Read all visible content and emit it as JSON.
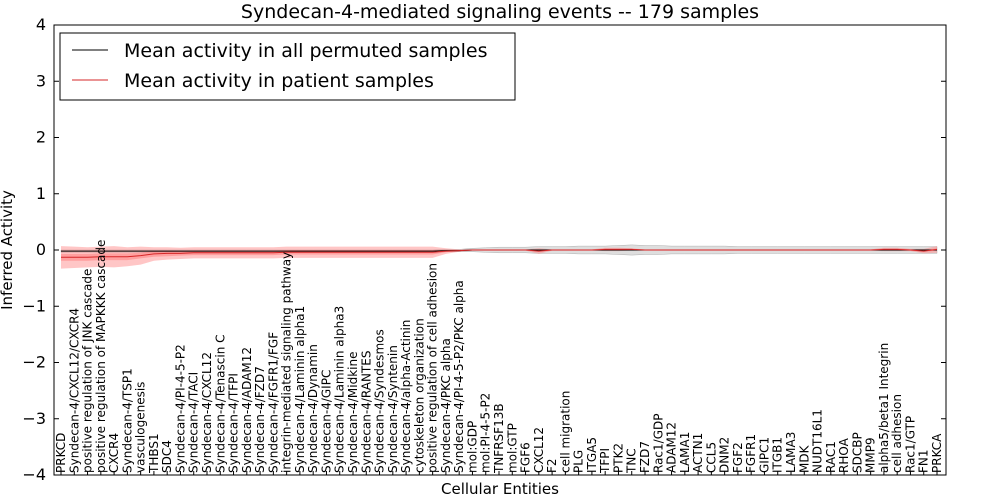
{
  "chart_data": {
    "type": "line",
    "title": "Syndecan-4-mediated signaling events -- 179 samples",
    "xlabel": "Cellular Entities",
    "ylabel": "Inferred Activity",
    "ylim": [
      -4,
      4
    ],
    "yticks": [
      4,
      3,
      2,
      1,
      0,
      -1,
      -2,
      -3,
      -4
    ],
    "ytick_labels": [
      "4",
      "3",
      "2",
      "1",
      "0",
      "−1",
      "−2",
      "−3",
      "−4"
    ],
    "legend": [
      "Mean activity in all permuted samples",
      "Mean activity in patient samples"
    ],
    "colors": {
      "permuted": "#000000",
      "patient": "#d62728",
      "patient_band": "#ff8080",
      "permuted_band": "#c8c8c8"
    },
    "categories": [
      "PRKCD",
      "Syndecan-4/CXCL12/CXCR4",
      "positive regulation of JNK cascade",
      "positive regulation of MAPKKK cascade",
      "CXCR4",
      "Syndecan-4/TSP1",
      "vasculogenesis",
      "THBS1",
      "SDC4",
      "Syndecan-4/PI-4-5-P2",
      "Syndecan-4/TACI",
      "Syndecan-4/CXCL12",
      "Syndecan-4/Tenascin C",
      "Syndecan-4/TFPI",
      "Syndecan-4/ADAM12",
      "Syndecan-4/FZD7",
      "Syndecan-4/FGFR1/FGF",
      "integrin-mediated signaling pathway",
      "Syndecan-4/Laminin alpha1",
      "Syndecan-4/Dynamin",
      "Syndecan-4/GIPC",
      "Syndecan-4/Laminin alpha3",
      "Syndecan-4/Midkine",
      "Syndecan-4/RANTES",
      "Syndecan-4/Syndesmos",
      "Syndecan-4/Syntenin",
      "Syndecan-4/alpha-Actinin",
      "cytoskeleton organization",
      "positive regulation of cell adhesion",
      "Syndecan-4/PKC alpha",
      "Syndecan-4/PI-4-5-P2/PKC alpha",
      "mol:GDP",
      "mol:PI-4-5-P2",
      "TNFRSF13B",
      "mol:GTP",
      "FGF6",
      "CXCL12",
      "F2",
      "cell migration",
      "PLG",
      "ITGA5",
      "TFPI",
      "PTK2",
      "TNC",
      "FZD7",
      "Rac1/GDP",
      "ADAM12",
      "LAMA1",
      "ACTN1",
      "CCL5",
      "DNM2",
      "FGF2",
      "FGFR1",
      "GIPC1",
      "ITGB1",
      "LAMA3",
      "MDK",
      "NUDT16L1",
      "RAC1",
      "RHOA",
      "SDCBP",
      "MMP9",
      "alpha5/beta1 Integrin",
      "cell adhesion",
      "Rac1/GTP",
      "FN1",
      "PRKCA"
    ],
    "series": [
      {
        "name": "Mean activity in all permuted samples",
        "values": [
          -0.02,
          -0.02,
          -0.02,
          -0.02,
          -0.02,
          -0.02,
          -0.02,
          -0.02,
          -0.02,
          -0.02,
          -0.02,
          -0.02,
          -0.02,
          -0.02,
          -0.02,
          -0.02,
          -0.02,
          -0.02,
          -0.02,
          -0.02,
          -0.02,
          -0.02,
          -0.02,
          -0.02,
          -0.02,
          -0.02,
          -0.02,
          -0.02,
          -0.02,
          -0.01,
          -0.01,
          0,
          0,
          0,
          0,
          0,
          0,
          0,
          0,
          0,
          0,
          0,
          0,
          0,
          0,
          0,
          0,
          0,
          0,
          0,
          0,
          0,
          0,
          0,
          0,
          0,
          0,
          0,
          0,
          0,
          0,
          0,
          0,
          0,
          0,
          0,
          0
        ],
        "band": [
          0.02,
          0.02,
          0.02,
          0.02,
          0.02,
          0.02,
          0.02,
          0.02,
          0.02,
          0.02,
          0.02,
          0.02,
          0.02,
          0.02,
          0.02,
          0.02,
          0.02,
          0.02,
          0.02,
          0.02,
          0.02,
          0.02,
          0.02,
          0.02,
          0.02,
          0.02,
          0.02,
          0.02,
          0.02,
          0.02,
          0.02,
          0.03,
          0.04,
          0.05,
          0.05,
          0.05,
          0.06,
          0.06,
          0.06,
          0.07,
          0.07,
          0.07,
          0.08,
          0.09,
          0.08,
          0.08,
          0.07,
          0.07,
          0.07,
          0.07,
          0.07,
          0.06,
          0.06,
          0.06,
          0.06,
          0.06,
          0.06,
          0.06,
          0.06,
          0.06,
          0.06,
          0.06,
          0.06,
          0.06,
          0.06,
          0.06,
          0.06
        ]
      },
      {
        "name": "Mean activity in patient samples",
        "values": [
          -0.13,
          -0.13,
          -0.13,
          -0.12,
          -0.12,
          -0.12,
          -0.1,
          -0.07,
          -0.06,
          -0.06,
          -0.05,
          -0.05,
          -0.05,
          -0.05,
          -0.05,
          -0.05,
          -0.05,
          -0.04,
          -0.04,
          -0.04,
          -0.04,
          -0.04,
          -0.04,
          -0.04,
          -0.04,
          -0.04,
          -0.04,
          -0.04,
          -0.04,
          -0.02,
          -0.01,
          0,
          0,
          0,
          0,
          0,
          -0.02,
          0,
          0,
          0,
          0,
          0.01,
          0.01,
          0.01,
          0,
          0,
          0,
          0,
          0,
          0,
          0,
          0,
          0,
          0,
          0,
          0,
          0,
          0,
          0,
          0,
          0,
          0,
          0.01,
          0.01,
          0,
          -0.02,
          0.01
        ],
        "band_inner": [
          0.06,
          0.06,
          0.06,
          0.06,
          0.06,
          0.06,
          0.05,
          0.05,
          0.05,
          0.04,
          0.04,
          0.04,
          0.04,
          0.04,
          0.04,
          0.04,
          0.04,
          0.04,
          0.04,
          0.04,
          0.04,
          0.04,
          0.04,
          0.04,
          0.04,
          0.04,
          0.04,
          0.04,
          0.04,
          0.02,
          0.01,
          0,
          0,
          0,
          0,
          0,
          0.01,
          0,
          0,
          0,
          0,
          0.01,
          0.01,
          0.01,
          0,
          0,
          0,
          0,
          0,
          0,
          0,
          0,
          0,
          0,
          0,
          0,
          0,
          0,
          0,
          0,
          0,
          0,
          0.01,
          0.01,
          0.01,
          0.01,
          0.02
        ],
        "band_outer": [
          0.2,
          0.19,
          0.18,
          0.18,
          0.19,
          0.17,
          0.16,
          0.12,
          0.11,
          0.1,
          0.1,
          0.1,
          0.1,
          0.1,
          0.1,
          0.1,
          0.1,
          0.1,
          0.1,
          0.1,
          0.1,
          0.1,
          0.1,
          0.1,
          0.1,
          0.1,
          0.1,
          0.1,
          0.1,
          0.05,
          0.02,
          0.01,
          0.01,
          0.01,
          0.01,
          0.01,
          0.05,
          0.01,
          0.01,
          0.01,
          0.01,
          0.03,
          0.03,
          0.02,
          0.01,
          0.01,
          0.01,
          0.01,
          0.01,
          0.01,
          0.01,
          0.01,
          0.01,
          0.01,
          0.01,
          0.01,
          0.01,
          0.01,
          0.01,
          0.01,
          0.01,
          0.01,
          0.03,
          0.03,
          0.02,
          0.04,
          0.06
        ]
      }
    ]
  }
}
